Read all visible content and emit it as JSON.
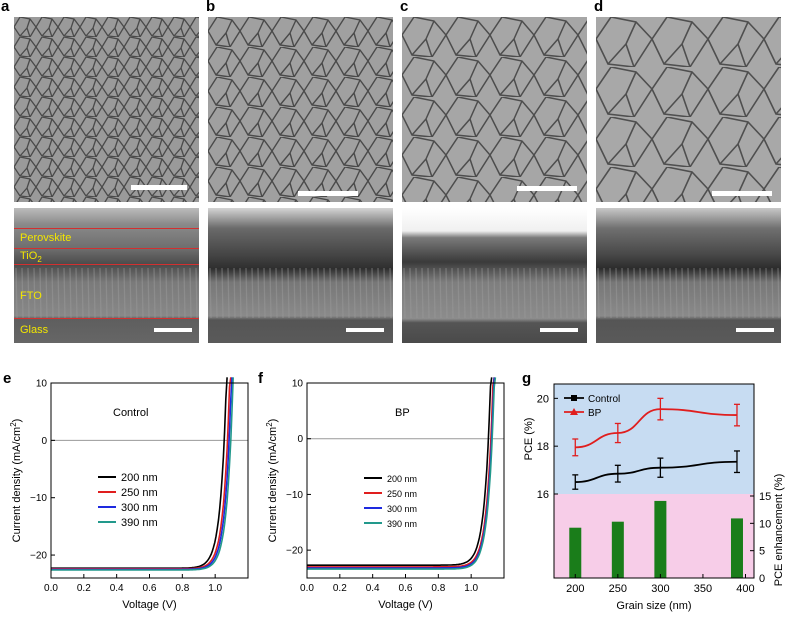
{
  "panel_labels": {
    "a": "a",
    "b": "b",
    "c": "c",
    "d": "d",
    "e": "e",
    "f": "f",
    "g": "g"
  },
  "cross_section_layers": {
    "perovskite": "Perovskite",
    "tio2_main": "TiO",
    "tio2_sub": "2",
    "fto": "FTO",
    "glass": "Glass"
  },
  "chart_data": [
    {
      "type": "line",
      "panel": "e",
      "annotation": "Control",
      "xlabel": "Voltage (V)",
      "ylabel_main": "Current density (mA/cm",
      "ylabel_sup": "2",
      "ylabel_end": ")",
      "xlim": [
        0.0,
        1.2
      ],
      "ylim": [
        -24,
        10
      ],
      "xticks": [
        "0.0",
        "0.2",
        "0.4",
        "0.6",
        "0.8",
        "1.0"
      ],
      "yticks": [
        "10",
        "0",
        "−10",
        "−20"
      ],
      "legend_position": "center",
      "series": [
        {
          "name": "200 nm",
          "color": "#000000",
          "jsc": -22.3,
          "voc": 1.055
        },
        {
          "name": "250 nm",
          "color": "#e01e1e",
          "jsc": -22.4,
          "voc": 1.075
        },
        {
          "name": "300 nm",
          "color": "#1e2adf",
          "jsc": -22.5,
          "voc": 1.085
        },
        {
          "name": "390 nm",
          "color": "#22998c",
          "jsc": -22.6,
          "voc": 1.095
        }
      ]
    },
    {
      "type": "line",
      "panel": "f",
      "annotation": "BP",
      "xlabel": "Voltage (V)",
      "ylabel_main": "Current density (mA/cm",
      "ylabel_sup": "2",
      "ylabel_end": ")",
      "xlim": [
        0.0,
        1.2
      ],
      "ylim": [
        -25,
        10
      ],
      "xticks": [
        "0.0",
        "0.2",
        "0.4",
        "0.6",
        "0.8",
        "1.0"
      ],
      "yticks": [
        "10",
        "0",
        "−10",
        "−20"
      ],
      "legend_position": "center",
      "series": [
        {
          "name": "200 nm",
          "color": "#000000",
          "jsc": -22.7,
          "voc": 1.105
        },
        {
          "name": "250 nm",
          "color": "#e01e1e",
          "jsc": -23.0,
          "voc": 1.12
        },
        {
          "name": "300 nm",
          "color": "#1e2adf",
          "jsc": -23.2,
          "voc": 1.125
        },
        {
          "name": "390 nm",
          "color": "#22998c",
          "jsc": -23.4,
          "voc": 1.128
        }
      ]
    },
    {
      "type": "line",
      "panel": "g",
      "xlabel": "Grain size (nm)",
      "ylabel_left": "PCE (%)",
      "ylabel_right": "PCE enhancement (%)",
      "x": [
        200,
        250,
        300,
        390
      ],
      "xlim": [
        175,
        410
      ],
      "xticks": [
        "200",
        "250",
        "300",
        "350",
        "400"
      ],
      "pce_ylim": [
        16,
        20.6
      ],
      "pce_yticks": [
        "16",
        "18",
        "20"
      ],
      "enh_ylim": [
        0,
        15
      ],
      "enh_yticks": [
        "0",
        "5",
        "10",
        "15"
      ],
      "legend_position": "top-left",
      "series": [
        {
          "name": "Control",
          "color": "#000000",
          "values": [
            16.5,
            16.85,
            17.1,
            17.35
          ],
          "errors": [
            0.3,
            0.35,
            0.4,
            0.45
          ]
        },
        {
          "name": "BP",
          "color": "#e01e1e",
          "values": [
            17.95,
            18.55,
            19.55,
            19.3
          ],
          "errors": [
            0.35,
            0.4,
            0.45,
            0.45
          ]
        }
      ],
      "bars": {
        "name": "PCE enhancement",
        "color": "#1a7d1a",
        "values": [
          9.2,
          10.3,
          14.1,
          10.9
        ]
      },
      "background_top": "#c7dcf2",
      "background_bottom": "#f7cde8"
    }
  ]
}
